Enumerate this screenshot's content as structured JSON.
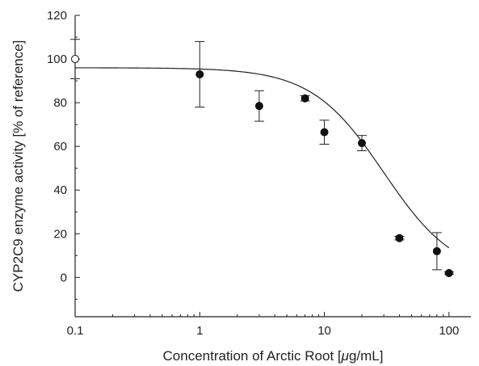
{
  "chart_data": {
    "type": "scatter",
    "title": "",
    "xlabel": "Concentration of Arctic Root [μg/mL]",
    "xlabel_parts": [
      "Concentration of Arctic Root [",
      "μ",
      "g/mL]"
    ],
    "ylabel": "CYP2C9 enzyme activity [% of reference]",
    "xscale": "log",
    "xlim": [
      0.1,
      150
    ],
    "ylim": [
      -18,
      120
    ],
    "xticks": [
      0.1,
      1,
      10,
      100
    ],
    "xtick_labels": [
      "0.1",
      "1",
      "10",
      "100"
    ],
    "yticks": [
      0,
      20,
      40,
      60,
      80,
      100,
      120
    ],
    "ytick_labels": [
      "0",
      "20",
      "40",
      "60",
      "80",
      "100",
      "120"
    ],
    "grid": false,
    "legend": "none",
    "series": [
      {
        "marker": "open-circle",
        "points": [
          {
            "x": 0.1,
            "y": 100,
            "err": 9
          }
        ]
      },
      {
        "marker": "filled-circle",
        "points": [
          {
            "x": 1,
            "y": 93,
            "err": 15
          },
          {
            "x": 3,
            "y": 78.5,
            "err": 7
          },
          {
            "x": 7,
            "y": 82,
            "err": 1.2
          },
          {
            "x": 10,
            "y": 66.5,
            "err": 5.5
          },
          {
            "x": 20,
            "y": 61.5,
            "err": 3.5
          },
          {
            "x": 40,
            "y": 18,
            "err": 0.8
          },
          {
            "x": 80,
            "y": 12,
            "err": 8.5
          },
          {
            "x": 100,
            "y": 2,
            "err": 0.5
          }
        ]
      }
    ],
    "fit_curve": {
      "model": "sigmoid",
      "top": 96,
      "bottom": 0,
      "ec50": 30,
      "hill": 1.5,
      "x_from": 0.1,
      "x_to": 100
    },
    "colors": {
      "axis": "#222222",
      "marker": "#111111",
      "open_marker_fill": "#ffffff"
    }
  }
}
